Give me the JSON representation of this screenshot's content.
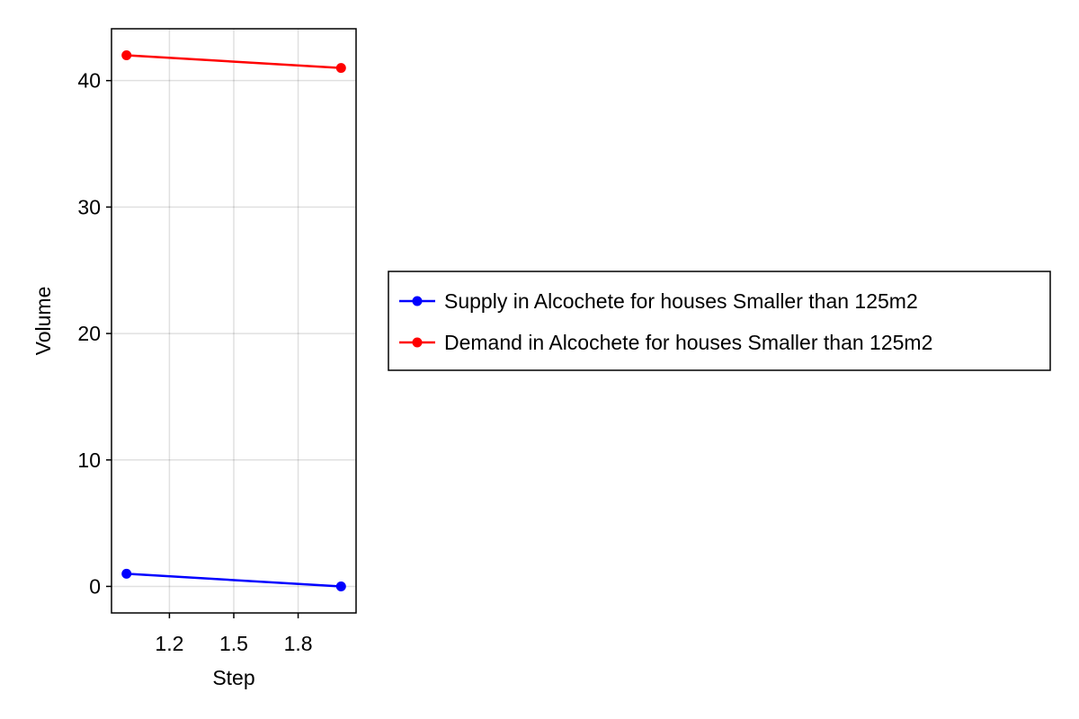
{
  "chart_data": {
    "type": "line",
    "xlabel": "Step",
    "ylabel": "Volume",
    "x": [
      1.0,
      2.0
    ],
    "xlim": [
      0.93,
      2.07
    ],
    "ylim": [
      -2.1,
      44.1
    ],
    "xticks": [
      1.2,
      1.5,
      1.8
    ],
    "xtick_labels": [
      "1.2",
      "1.5",
      "1.8"
    ],
    "yticks": [
      0,
      10,
      20,
      30,
      40
    ],
    "ytick_labels": [
      "0",
      "10",
      "20",
      "30",
      "40"
    ],
    "grid": true,
    "legend_position": "right",
    "series": [
      {
        "name": "Supply in Alcochete for houses Smaller than 125m2",
        "color": "#0000ff",
        "values": [
          1,
          0
        ]
      },
      {
        "name": "Demand in Alcochete for houses Smaller than 125m2",
        "color": "#ff0000",
        "values": [
          42,
          41
        ]
      }
    ]
  }
}
